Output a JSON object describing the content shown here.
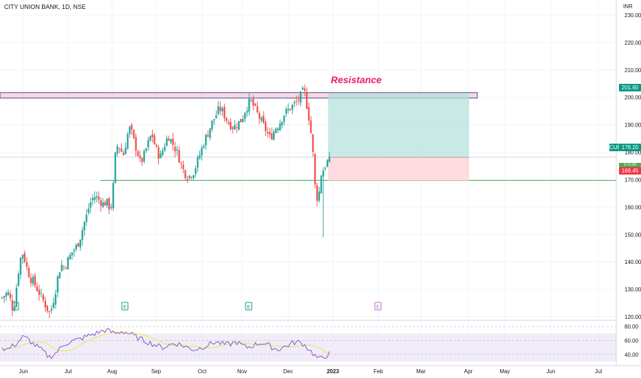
{
  "header": {
    "symbol": "CITY UNION BANK, 1D, NSE",
    "currency": "INR"
  },
  "annotation": {
    "text": "Resistance"
  },
  "price_labels": {
    "target": "201.60",
    "ticker": "CUB",
    "last": "178.20",
    "stop": "169.45",
    "hidden": "170.00"
  },
  "events": [
    "E",
    "E",
    "E",
    "E"
  ],
  "colors": {
    "up": "#26a69a",
    "down": "#ef5350",
    "rsi": "#7e57c2",
    "rsi_ma": "#e8e84a",
    "sr_line": "#4caf50",
    "resistance_zone": "#f8c8c8",
    "resistance_border": "#3949ab"
  },
  "chart_data": [
    {
      "type": "candlestick",
      "title": "CITY UNION BANK, 1D, NSE",
      "ylim": [
        118,
        232
      ],
      "y_ticks": [
        "230.00",
        "220.00",
        "210.00",
        "200.00",
        "190.00",
        "180.00",
        "170.00",
        "160.00",
        "150.00",
        "140.00",
        "130.00",
        "120.00"
      ],
      "x_ticks": [
        "Jun",
        "Jul",
        "Aug",
        "Sep",
        "Oct",
        "Nov",
        "Dec",
        "2023",
        "Feb",
        "Mar",
        "Apr",
        "May",
        "Jun",
        "Jul"
      ],
      "anchor_prices": [
        127,
        128,
        129,
        126,
        122,
        130,
        138,
        144,
        141,
        137,
        134,
        133,
        131,
        129,
        127,
        125,
        123,
        121,
        125,
        130,
        136,
        139,
        138,
        140,
        142,
        144,
        145,
        147,
        150,
        154,
        157,
        161,
        163,
        164,
        163,
        162,
        161,
        162,
        160,
        161,
        178,
        183,
        181,
        179,
        184,
        189,
        187,
        183,
        180,
        176,
        178,
        181,
        184,
        187,
        183,
        180,
        178,
        181,
        184,
        186,
        184,
        182,
        180,
        177,
        174,
        172,
        171,
        172,
        173,
        176,
        179,
        182,
        185,
        187,
        190,
        192,
        194,
        196,
        195,
        193,
        191,
        190,
        189,
        190,
        191,
        192,
        195,
        197,
        199,
        197,
        195,
        193,
        191,
        189,
        187,
        185,
        187,
        189,
        190,
        192,
        194,
        195,
        196,
        197,
        198,
        199,
        201,
        203,
        197,
        191,
        182,
        166,
        162,
        172,
        174,
        176,
        178.2
      ],
      "last_price": 178.2,
      "horizontal_line": 170,
      "resistance_zone": [
        199,
        201
      ],
      "long_position": {
        "entry": 178.2,
        "target": 201.6,
        "stop": 169.45
      }
    },
    {
      "type": "line",
      "name": "RSI",
      "ylim": [
        28,
        85
      ],
      "y_ticks": [
        "80.00",
        "60.00",
        "40.00"
      ],
      "band": [
        30,
        70
      ],
      "anchor_values": [
        50,
        47,
        52,
        57,
        65,
        62,
        55,
        50,
        44,
        36,
        40,
        47,
        55,
        58,
        60,
        62,
        65,
        68,
        70,
        73,
        75,
        72,
        70,
        73,
        71,
        68,
        64,
        61,
        58,
        55,
        52,
        50,
        53,
        56,
        55,
        52,
        49,
        47,
        49,
        52,
        55,
        58,
        56,
        54,
        55,
        58,
        54,
        50,
        52,
        55,
        57,
        54,
        50,
        47,
        50,
        53,
        57,
        58,
        55,
        48,
        40,
        33,
        37,
        41
      ]
    }
  ]
}
